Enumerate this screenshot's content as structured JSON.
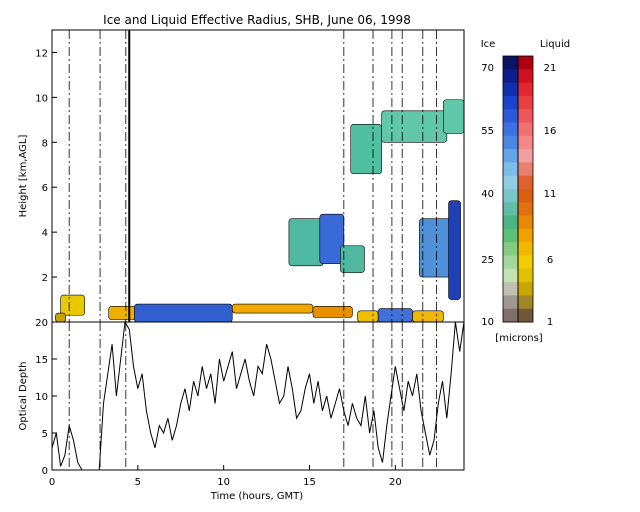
{
  "chart_data": [
    {
      "type": "heatmap",
      "title": "Ice and Liquid Effective Radius, SHB, June 06, 1998",
      "xlabel": "",
      "ylabel": "Height [km,AGL]",
      "xlim": [
        0,
        24
      ],
      "ylim": [
        0,
        13
      ],
      "x_ticks": [
        0,
        5,
        10,
        15,
        20
      ],
      "y_ticks": [
        2,
        4,
        6,
        8,
        10,
        12
      ],
      "dashed_vertical_lines_hours": [
        1.0,
        2.8,
        4.3,
        17.0,
        18.7,
        19.8,
        20.4,
        21.6,
        22.4
      ],
      "solid_vertical_line_hour": 4.5,
      "cloud_regions": [
        {
          "kind": "liquid",
          "t0": 0.5,
          "t1": 1.9,
          "z0": 0.3,
          "z1": 1.2,
          "color": "#e8c800"
        },
        {
          "kind": "liquid",
          "t0": 0.2,
          "t1": 0.8,
          "z0": 0.0,
          "z1": 0.4,
          "color": "#c8a000"
        },
        {
          "kind": "liquid",
          "t0": 3.3,
          "t1": 5.0,
          "z0": 0.1,
          "z1": 0.7,
          "color": "#f0b000"
        },
        {
          "kind": "ice",
          "t0": 4.8,
          "t1": 10.5,
          "z0": 0.0,
          "z1": 0.8,
          "color": "#3060d0"
        },
        {
          "kind": "liquid",
          "t0": 10.5,
          "t1": 15.2,
          "z0": 0.4,
          "z1": 0.8,
          "color": "#f0a800"
        },
        {
          "kind": "liquid",
          "t0": 15.2,
          "t1": 17.5,
          "z0": 0.2,
          "z1": 0.7,
          "color": "#e89000"
        },
        {
          "kind": "liquid",
          "t0": 17.8,
          "t1": 19.0,
          "z0": 0.0,
          "z1": 0.5,
          "color": "#f0c000"
        },
        {
          "kind": "ice",
          "t0": 19.0,
          "t1": 21.0,
          "z0": 0.0,
          "z1": 0.6,
          "color": "#4070d8"
        },
        {
          "kind": "liquid",
          "t0": 21.0,
          "t1": 22.8,
          "z0": 0.0,
          "z1": 0.5,
          "color": "#f0b800"
        },
        {
          "kind": "ice",
          "t0": 13.8,
          "t1": 15.8,
          "z0": 2.5,
          "z1": 4.6,
          "color": "#50b8a0"
        },
        {
          "kind": "ice",
          "t0": 15.6,
          "t1": 17.0,
          "z0": 2.6,
          "z1": 4.8,
          "color": "#3a6ad8"
        },
        {
          "kind": "ice",
          "t0": 16.8,
          "t1": 18.2,
          "z0": 2.2,
          "z1": 3.4,
          "color": "#50b8a0"
        },
        {
          "kind": "ice",
          "t0": 21.4,
          "t1": 23.2,
          "z0": 2.0,
          "z1": 4.6,
          "color": "#5090d8"
        },
        {
          "kind": "ice",
          "t0": 23.1,
          "t1": 23.8,
          "z0": 1.0,
          "z1": 5.4,
          "color": "#2040b8"
        },
        {
          "kind": "ice",
          "t0": 17.4,
          "t1": 19.2,
          "z0": 6.6,
          "z1": 8.8,
          "color": "#50c0a0"
        },
        {
          "kind": "ice",
          "t0": 19.2,
          "t1": 23.0,
          "z0": 8.0,
          "z1": 9.4,
          "color": "#60c8a8"
        },
        {
          "kind": "ice",
          "t0": 22.8,
          "t1": 24.0,
          "z0": 8.4,
          "z1": 9.9,
          "color": "#60c8a8"
        }
      ]
    },
    {
      "type": "line",
      "xlabel": "Time (hours, GMT)",
      "ylabel": "Optical Depth",
      "xlim": [
        0,
        24
      ],
      "ylim": [
        0,
        20
      ],
      "x_ticks": [
        0,
        5,
        10,
        15,
        20
      ],
      "y_ticks": [
        0,
        5,
        10,
        15,
        20
      ],
      "series": [
        {
          "x": [
            0,
            0.25,
            0.5,
            0.75,
            1,
            1.25,
            1.5,
            1.75,
            2,
            2.25,
            2.5,
            2.75,
            3,
            3.25,
            3.5,
            3.75,
            4,
            4.25,
            4.5,
            4.75,
            5,
            5.25,
            5.5,
            5.75,
            6,
            6.25,
            6.5,
            6.75,
            7,
            7.25,
            7.5,
            7.75,
            8,
            8.25,
            8.5,
            8.75,
            9,
            9.25,
            9.5,
            9.75,
            10,
            10.25,
            10.5,
            10.75,
            11,
            11.25,
            11.5,
            11.75,
            12,
            12.25,
            12.5,
            12.75,
            13,
            13.25,
            13.5,
            13.75,
            14,
            14.25,
            14.5,
            14.75,
            15,
            15.25,
            15.5,
            15.75,
            16,
            16.25,
            16.5,
            16.75,
            17,
            17.25,
            17.5,
            17.75,
            18,
            18.25,
            18.5,
            18.75,
            19,
            19.25,
            19.5,
            19.75,
            20,
            20.25,
            20.5,
            20.75,
            21,
            21.25,
            21.5,
            21.75,
            22,
            22.25,
            22.5,
            22.75,
            23,
            23.25,
            23.5,
            23.75,
            24
          ],
          "y": [
            3,
            5,
            0.5,
            2,
            6,
            4,
            1,
            0,
            0,
            0,
            0,
            0,
            9,
            13,
            17,
            10,
            15,
            20,
            19,
            14,
            11,
            13,
            8,
            5,
            3,
            6,
            5,
            7,
            4,
            6,
            9,
            11,
            8,
            12,
            10,
            14,
            11,
            13,
            9,
            15,
            12,
            14,
            16,
            11,
            13,
            15,
            12,
            10,
            14,
            13,
            17,
            15,
            12,
            9,
            10,
            14,
            11,
            7,
            8,
            11,
            13,
            9,
            12,
            8,
            10,
            7,
            9,
            11,
            8,
            6,
            9,
            7,
            6,
            10,
            5,
            8,
            3,
            1,
            6,
            10,
            14,
            11,
            8,
            12,
            10,
            13,
            8,
            5,
            2,
            4,
            9,
            12,
            7,
            13,
            20,
            16,
            20
          ]
        }
      ]
    }
  ],
  "colorbar": {
    "ice_label": "Ice",
    "liquid_label": "Liquid",
    "unit_label": "[microns]",
    "ice_ticks": [
      "70",
      "55",
      "40",
      "25",
      "10"
    ],
    "liquid_ticks": [
      "21",
      "16",
      "11",
      "6",
      "1"
    ],
    "ice_colors": [
      "#0a1464",
      "#0c1f8a",
      "#1030b0",
      "#1a44cc",
      "#2a5ad8",
      "#3a70e0",
      "#4a88e4",
      "#62a4e8",
      "#7cbce8",
      "#90cce4",
      "#7ac4cc",
      "#62bca8",
      "#4cb484",
      "#5cc078",
      "#82cc84",
      "#a2d89c",
      "#c2e4b4",
      "#c0c0b0",
      "#a09890",
      "#807068"
    ],
    "liquid_colors": [
      "#b00010",
      "#d01020",
      "#e02830",
      "#e84040",
      "#ec5858",
      "#f07070",
      "#f48888",
      "#f0a0a0",
      "#e88070",
      "#e06030",
      "#d86010",
      "#e07010",
      "#e88808",
      "#f0a000",
      "#f0b800",
      "#f0cc00",
      "#e0c000",
      "#c8a800",
      "#a08828",
      "#705838"
    ]
  }
}
